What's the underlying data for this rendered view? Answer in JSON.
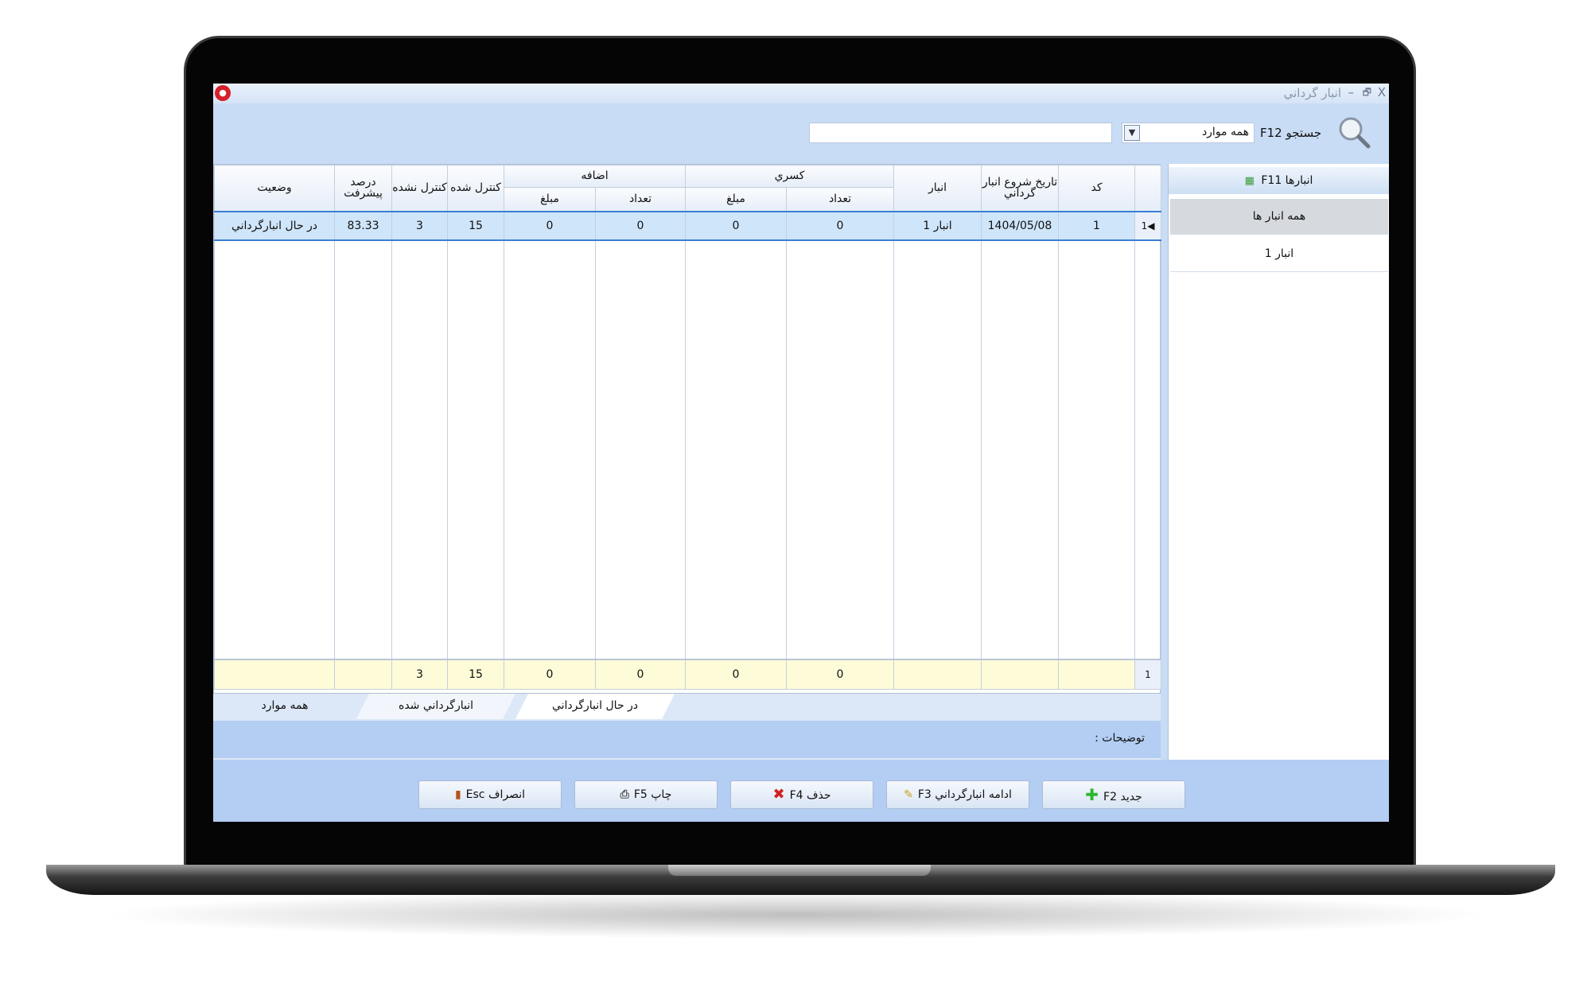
{
  "window": {
    "title": "انبار گرداني",
    "minimize": "–",
    "restore": "🗗",
    "close": "X"
  },
  "search": {
    "label": "جستجو F12",
    "scope": "همه موارد",
    "value": "",
    "placeholder": ""
  },
  "grid": {
    "group_headers": {
      "deficit": "كسري",
      "surplus": "اضافه"
    },
    "columns": {
      "code": "كد",
      "start_date": "تاريخ شروع انبار گرداني",
      "warehouse": "انبار",
      "deficit_count": "تعداد",
      "deficit_amount": "مبلغ",
      "surplus_count": "تعداد",
      "surplus_amount": "مبلغ",
      "checked": "كنترل شده",
      "unchecked": "كنترل نشده",
      "progress": "درصد پيشرفت",
      "status": "وضعيت"
    },
    "rows": [
      {
        "index": "1",
        "code": "1",
        "start_date": "1404/05/08",
        "warehouse": "انبار 1",
        "deficit_count": "0",
        "deficit_amount": "0",
        "surplus_count": "0",
        "surplus_amount": "0",
        "checked": "15",
        "unchecked": "3",
        "progress": "83.33",
        "status": "در حال انبارگرداني"
      }
    ],
    "totals": {
      "index": "1",
      "deficit_count": "0",
      "deficit_amount": "0",
      "surplus_count": "0",
      "surplus_amount": "0",
      "checked": "15",
      "unchecked": "3"
    }
  },
  "tabs": [
    {
      "label": "در حال انبارگرداني",
      "active": true
    },
    {
      "label": "انبارگرداني شده",
      "active": false
    },
    {
      "label": "همه موارد",
      "active": false
    }
  ],
  "description_label": "توضيحات :",
  "sidebar": {
    "header": "انبارها F11",
    "items": [
      {
        "label": "همه انبار ها",
        "selected": true
      },
      {
        "label": "انبار 1",
        "selected": false
      }
    ]
  },
  "buttons": {
    "new": "جديد F2",
    "continue": "ادامه انبارگرداني F3",
    "delete": "حذف F4",
    "print": "چاپ F5",
    "cancel": "انصراف Esc"
  },
  "colors": {
    "background": "#c9dcf5",
    "selected_row": "#cfe5fa",
    "totals_row": "#fdfbd8",
    "accent": "#3b7fd6"
  }
}
